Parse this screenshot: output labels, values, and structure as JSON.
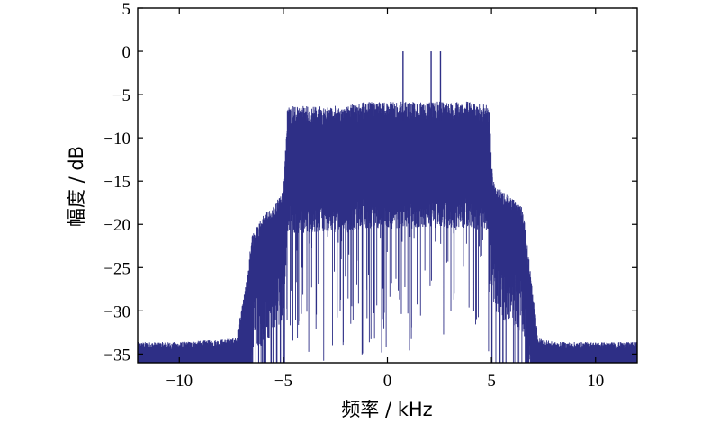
{
  "chart_data": {
    "type": "line",
    "xlabel": "频率 / kHz",
    "ylabel": "幅度 / dB",
    "xlim": [
      -12,
      12
    ],
    "ylim": [
      -36,
      5
    ],
    "xticks": [
      -10,
      -5,
      0,
      5,
      10
    ],
    "yticks": [
      5,
      0,
      -5,
      -10,
      -15,
      -20,
      -25,
      -30,
      -35
    ],
    "grid": false,
    "series_color": "#2e2f86",
    "series": [
      {
        "x": [
          -12,
          -10,
          -8,
          -7.2,
          -6.8,
          -6.5,
          -6,
          -5.5,
          -5,
          -4.8,
          -4,
          -3,
          -2,
          -1,
          0,
          1,
          2,
          3,
          4,
          4.9,
          5,
          5.2,
          6,
          6.5,
          6.8,
          7.2,
          8,
          10,
          12
        ],
        "y": [
          -34.5,
          -34.5,
          -34.2,
          -34,
          -29,
          -23,
          -21,
          -20,
          -18,
          -8,
          -8,
          -8,
          -8,
          -7.5,
          -7.5,
          -7.5,
          -7.5,
          -7.5,
          -7.5,
          -8,
          -15,
          -17.5,
          -19,
          -20,
          -26,
          -34,
          -34.5,
          -34.5,
          -34.5
        ]
      }
    ],
    "spikes": [
      {
        "x": 0.75,
        "y": 0
      },
      {
        "x": 2.1,
        "y": 0
      },
      {
        "x": 2.55,
        "y": 0
      }
    ]
  }
}
